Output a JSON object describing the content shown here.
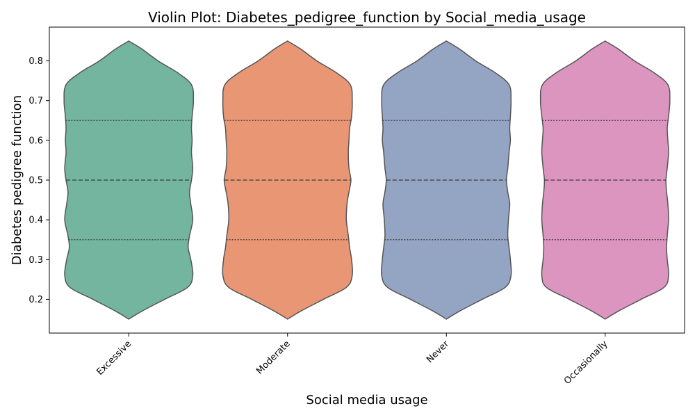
{
  "chart_data": {
    "type": "violin",
    "title": "Violin Plot: Diabetes_pedigree_function by Social_media_usage",
    "xlabel": "Social media usage",
    "ylabel": "Diabetes pedigree function",
    "categories": [
      "Excessive",
      "Moderate",
      "Never",
      "Occasionally"
    ],
    "ylim": [
      0.115,
      0.885
    ],
    "yticks": [
      0.2,
      0.3,
      0.4,
      0.5,
      0.6,
      0.7,
      0.8
    ],
    "ytick_labels": [
      "0.2",
      "0.3",
      "0.4",
      "0.5",
      "0.6",
      "0.7",
      "0.8"
    ],
    "grid": false,
    "quartile_lines": [
      "Q1",
      "median",
      "Q3"
    ],
    "series": [
      {
        "category": "Excessive",
        "color": "#73b59f",
        "quartiles": {
          "q1": 0.35,
          "median": 0.5,
          "q3": 0.65
        },
        "range": [
          0.15,
          0.85
        ],
        "density": [
          [
            0.15,
            0.0
          ],
          [
            0.17,
            0.2
          ],
          [
            0.2,
            0.55
          ],
          [
            0.23,
            0.9
          ],
          [
            0.26,
            0.98
          ],
          [
            0.3,
            0.95
          ],
          [
            0.33,
            0.91
          ],
          [
            0.36,
            0.93
          ],
          [
            0.4,
            0.98
          ],
          [
            0.44,
            0.95
          ],
          [
            0.47,
            0.93
          ],
          [
            0.5,
            0.96
          ],
          [
            0.53,
            0.98
          ],
          [
            0.57,
            0.96
          ],
          [
            0.6,
            0.97
          ],
          [
            0.63,
            0.96
          ],
          [
            0.66,
            0.97
          ],
          [
            0.7,
            0.99
          ],
          [
            0.74,
            0.96
          ],
          [
            0.77,
            0.75
          ],
          [
            0.8,
            0.45
          ],
          [
            0.83,
            0.2
          ],
          [
            0.85,
            0.0
          ]
        ]
      },
      {
        "category": "Moderate",
        "color": "#e89674",
        "quartiles": {
          "q1": 0.35,
          "median": 0.5,
          "q3": 0.65
        },
        "range": [
          0.15,
          0.85
        ],
        "density": [
          [
            0.15,
            0.0
          ],
          [
            0.17,
            0.2
          ],
          [
            0.2,
            0.55
          ],
          [
            0.23,
            0.9
          ],
          [
            0.26,
            0.99
          ],
          [
            0.3,
            0.98
          ],
          [
            0.33,
            0.95
          ],
          [
            0.36,
            0.93
          ],
          [
            0.4,
            0.9
          ],
          [
            0.44,
            0.91
          ],
          [
            0.47,
            0.94
          ],
          [
            0.5,
            0.97
          ],
          [
            0.53,
            0.94
          ],
          [
            0.57,
            0.93
          ],
          [
            0.6,
            0.94
          ],
          [
            0.63,
            0.95
          ],
          [
            0.66,
            0.98
          ],
          [
            0.7,
            0.99
          ],
          [
            0.74,
            0.96
          ],
          [
            0.77,
            0.75
          ],
          [
            0.8,
            0.45
          ],
          [
            0.83,
            0.2
          ],
          [
            0.85,
            0.0
          ]
        ]
      },
      {
        "category": "Never",
        "color": "#94a4c3",
        "quartiles": {
          "q1": 0.35,
          "median": 0.5,
          "q3": 0.65
        },
        "range": [
          0.15,
          0.85
        ],
        "density": [
          [
            0.15,
            0.0
          ],
          [
            0.17,
            0.2
          ],
          [
            0.2,
            0.55
          ],
          [
            0.23,
            0.9
          ],
          [
            0.26,
            0.99
          ],
          [
            0.3,
            0.98
          ],
          [
            0.33,
            0.96
          ],
          [
            0.36,
            0.94
          ],
          [
            0.4,
            0.95
          ],
          [
            0.44,
            0.97
          ],
          [
            0.47,
            0.94
          ],
          [
            0.5,
            0.92
          ],
          [
            0.53,
            0.94
          ],
          [
            0.57,
            0.96
          ],
          [
            0.6,
            0.98
          ],
          [
            0.63,
            0.97
          ],
          [
            0.66,
            0.98
          ],
          [
            0.7,
            0.99
          ],
          [
            0.74,
            0.96
          ],
          [
            0.77,
            0.75
          ],
          [
            0.8,
            0.45
          ],
          [
            0.83,
            0.2
          ],
          [
            0.85,
            0.0
          ]
        ]
      },
      {
        "category": "Occasionally",
        "color": "#db95bf",
        "quartiles": {
          "q1": 0.35,
          "median": 0.5,
          "q3": 0.65
        },
        "range": [
          0.15,
          0.85
        ],
        "density": [
          [
            0.15,
            0.0
          ],
          [
            0.17,
            0.2
          ],
          [
            0.2,
            0.55
          ],
          [
            0.23,
            0.9
          ],
          [
            0.26,
            0.97
          ],
          [
            0.3,
            0.95
          ],
          [
            0.33,
            0.94
          ],
          [
            0.36,
            0.95
          ],
          [
            0.4,
            0.97
          ],
          [
            0.44,
            0.96
          ],
          [
            0.47,
            0.94
          ],
          [
            0.5,
            0.93
          ],
          [
            0.53,
            0.95
          ],
          [
            0.57,
            0.97
          ],
          [
            0.6,
            0.96
          ],
          [
            0.63,
            0.95
          ],
          [
            0.66,
            0.97
          ],
          [
            0.7,
            0.99
          ],
          [
            0.74,
            0.96
          ],
          [
            0.77,
            0.75
          ],
          [
            0.8,
            0.45
          ],
          [
            0.83,
            0.2
          ],
          [
            0.85,
            0.0
          ]
        ]
      }
    ],
    "colors": {
      "outline": "#555555",
      "quartile_line": "#3c3c3c",
      "axis": "#000000"
    }
  }
}
